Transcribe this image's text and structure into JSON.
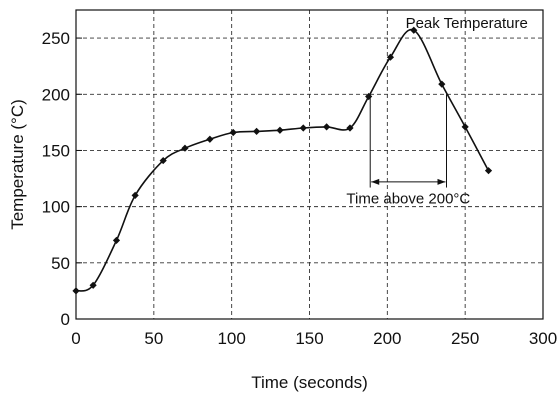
{
  "chart_data": {
    "type": "line",
    "title": "",
    "xlabel": "Time (seconds)",
    "ylabel": "Temperature (°C)",
    "xlim": [
      0,
      300
    ],
    "ylim": [
      0,
      275
    ],
    "x_ticks": [
      0,
      50,
      100,
      150,
      200,
      250,
      300
    ],
    "y_ticks": [
      0,
      50,
      100,
      150,
      200,
      250
    ],
    "grid": true,
    "grid_style": "dashed",
    "series": [
      {
        "x": [
          0,
          11,
          26,
          38,
          56,
          70,
          86,
          101,
          116,
          131,
          146,
          161,
          176,
          188,
          202,
          217,
          235,
          250,
          265
        ],
        "y": [
          25,
          30,
          70,
          110,
          141,
          152,
          160,
          166,
          167,
          168,
          170,
          171,
          170,
          198,
          233,
          257,
          209,
          171,
          132
        ],
        "marker": "diamond",
        "color": "#111111"
      }
    ],
    "annotations": [
      {
        "text": "Peak Temperature"
      },
      {
        "text": "Time above 200°C",
        "from_x": 189,
        "to_x": 238,
        "level_y": 200
      }
    ]
  }
}
